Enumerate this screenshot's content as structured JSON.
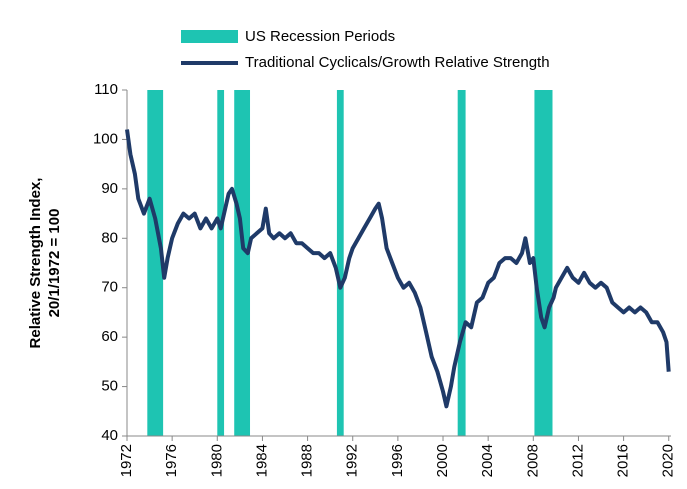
{
  "chart_data": {
    "type": "line",
    "y_label": [
      "Relative Strength Index,",
      "20/1/1972 = 100"
    ],
    "xlim": [
      1972,
      2020.2
    ],
    "xticks": [
      1972,
      1976,
      1980,
      1984,
      1988,
      1992,
      1996,
      2000,
      2004,
      2008,
      2012,
      2016,
      2020
    ],
    "ylim": [
      40,
      110
    ],
    "yticks": [
      40,
      50,
      60,
      70,
      80,
      90,
      100,
      110
    ],
    "grid": false,
    "shaded_periods": {
      "name": "US Recession Periods",
      "color": "#1ec4b2",
      "periods": [
        [
          1973.8,
          1975.2
        ],
        [
          1980.0,
          1980.6
        ],
        [
          1981.5,
          1982.9
        ],
        [
          1990.6,
          1991.2
        ],
        [
          2001.3,
          2002.0
        ],
        [
          2008.1,
          2009.7
        ]
      ]
    },
    "series": [
      {
        "name": "Traditional Cyclicals/Growth Relative Strength",
        "color": "#1f3a68",
        "x": [
          1972.0,
          1972.3,
          1972.7,
          1973.0,
          1973.5,
          1974.0,
          1974.5,
          1975.0,
          1975.3,
          1975.6,
          1976.0,
          1976.5,
          1977.0,
          1977.5,
          1978.0,
          1978.5,
          1979.0,
          1979.5,
          1980.0,
          1980.3,
          1980.7,
          1981.0,
          1981.3,
          1981.7,
          1982.0,
          1982.3,
          1982.7,
          1983.0,
          1983.5,
          1984.0,
          1984.3,
          1984.6,
          1985.0,
          1985.5,
          1986.0,
          1986.5,
          1987.0,
          1987.5,
          1988.0,
          1988.5,
          1989.0,
          1989.5,
          1990.0,
          1990.5,
          1990.9,
          1991.3,
          1991.7,
          1992.0,
          1992.5,
          1993.0,
          1993.5,
          1994.0,
          1994.3,
          1994.6,
          1995.0,
          1995.5,
          1996.0,
          1996.5,
          1997.0,
          1997.5,
          1998.0,
          1998.5,
          1999.0,
          1999.5,
          2000.0,
          2000.3,
          2000.7,
          2001.0,
          2001.5,
          2002.0,
          2002.5,
          2003.0,
          2003.5,
          2004.0,
          2004.5,
          2005.0,
          2005.5,
          2006.0,
          2006.5,
          2007.0,
          2007.3,
          2007.7,
          2008.0,
          2008.3,
          2008.7,
          2009.0,
          2009.4,
          2009.8,
          2010.0,
          2010.5,
          2011.0,
          2011.5,
          2012.0,
          2012.5,
          2013.0,
          2013.5,
          2014.0,
          2014.5,
          2015.0,
          2015.5,
          2016.0,
          2016.5,
          2017.0,
          2017.5,
          2018.0,
          2018.5,
          2019.0,
          2019.5,
          2019.8,
          2020.0
        ],
        "values": [
          102,
          97,
          93,
          88,
          85,
          88,
          84,
          78,
          72,
          76,
          80,
          83,
          85,
          84,
          85,
          82,
          84,
          82,
          84,
          82,
          86,
          89,
          90,
          87,
          84,
          78,
          77,
          80,
          81,
          82,
          86,
          81,
          80,
          81,
          80,
          81,
          79,
          79,
          78,
          77,
          77,
          76,
          77,
          74,
          70,
          72,
          76,
          78,
          80,
          82,
          84,
          86,
          87,
          84,
          78,
          75,
          72,
          70,
          71,
          69,
          66,
          61,
          56,
          53,
          49,
          46,
          50,
          54,
          59,
          63,
          62,
          67,
          68,
          71,
          72,
          75,
          76,
          76,
          75,
          77,
          80,
          75,
          76,
          70,
          64,
          62,
          66,
          68,
          70,
          72,
          74,
          72,
          71,
          73,
          71,
          70,
          71,
          70,
          67,
          66,
          65,
          66,
          65,
          66,
          65,
          63,
          63,
          61,
          59,
          53
        ]
      }
    ]
  }
}
